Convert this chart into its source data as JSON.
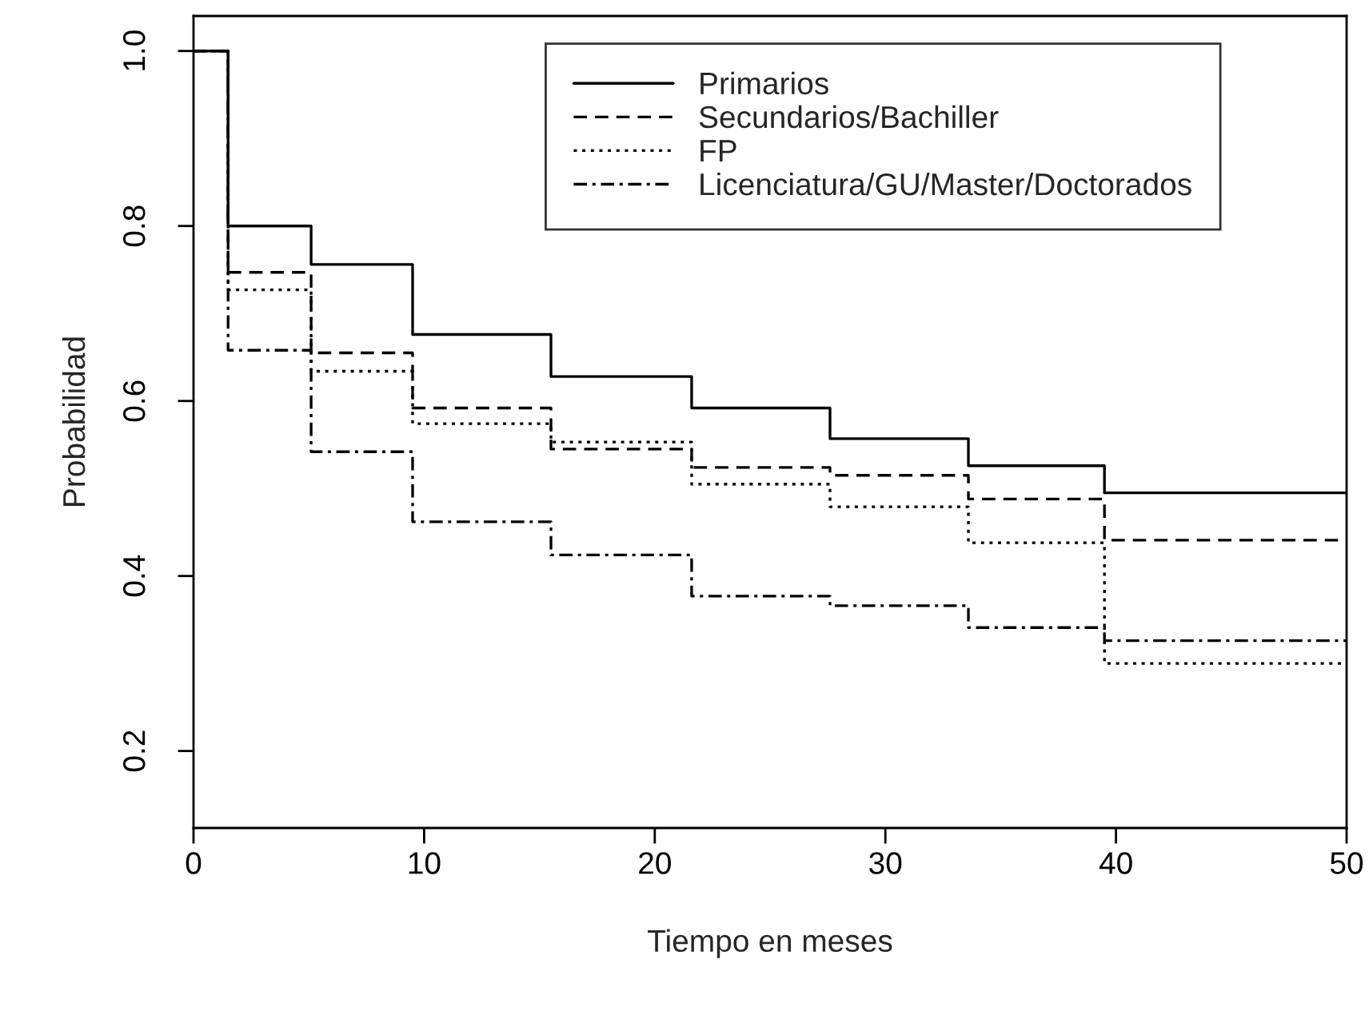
{
  "chart_data": {
    "type": "step",
    "xlabel": "Tiempo en meses",
    "ylabel": "Probabilidad",
    "x": [
      0,
      1.5,
      5.1,
      9.5,
      15.5,
      21.6,
      27.6,
      33.6,
      39.5,
      50
    ],
    "xlim": [
      0,
      50
    ],
    "xticks": [
      0,
      10,
      20,
      30,
      40,
      50
    ],
    "ylim": [
      0.112,
      1.04
    ],
    "yticks": [
      0.2,
      0.4,
      0.6,
      0.8,
      {
        "value": 1.0,
        "label": "1.0"
      }
    ],
    "grid": false,
    "legend": "top right",
    "series": [
      {
        "name": "Primarios",
        "color": "#000000",
        "line_style": "solid",
        "values": [
          1.0,
          0.8,
          0.756,
          0.676,
          0.628,
          0.592,
          0.557,
          0.526,
          0.495,
          0.495
        ]
      },
      {
        "name": "Secundarios/Bachiller",
        "color": "#000000",
        "line_style": "dashed",
        "values": [
          1.0,
          0.747,
          0.655,
          0.592,
          0.545,
          0.524,
          0.515,
          0.488,
          0.441,
          0.441
        ]
      },
      {
        "name": "FP",
        "color": "#000000",
        "line_style": "dotted",
        "values": [
          1.0,
          0.727,
          0.634,
          0.574,
          0.553,
          0.505,
          0.479,
          0.438,
          0.3,
          0.3
        ]
      },
      {
        "name": "Licenciatura/GU/Master/Doctorados",
        "color": "#000000",
        "line_style": "dashdot",
        "values": [
          1.0,
          0.658,
          0.542,
          0.462,
          0.424,
          0.377,
          0.366,
          0.341,
          0.326,
          0.326
        ]
      }
    ]
  }
}
